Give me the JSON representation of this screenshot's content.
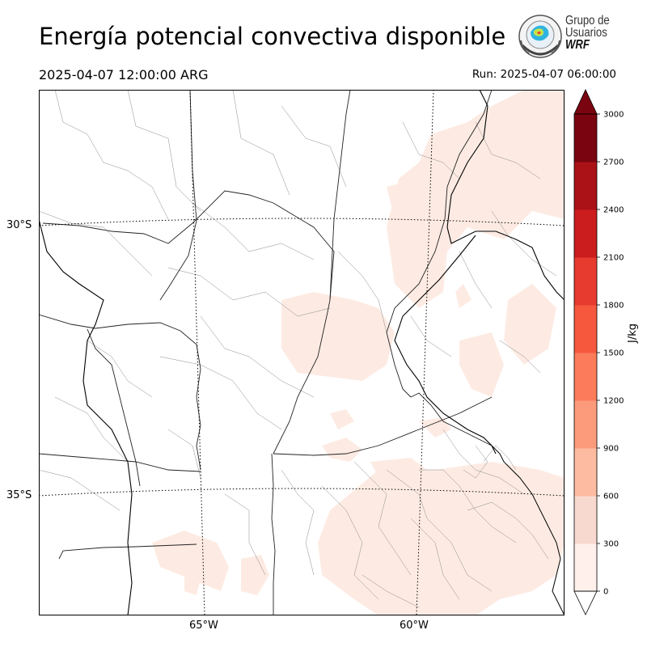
{
  "header": {
    "title": "Energía potencial convectiva disponible",
    "valid_time": "2025-04-07 12:00:00 ARG",
    "run_time": "Run: 2025-04-07 06:00:00"
  },
  "logo": {
    "line1": "Grupo de",
    "line2": "Usuarios",
    "line3": "WRF"
  },
  "map": {
    "latitude_labels": [
      "30°S",
      "35°S"
    ],
    "longitude_labels": [
      "65°W",
      "60°W"
    ],
    "shading_color": "#fdebe3"
  },
  "colorbar": {
    "unit": "J/kg",
    "ticks": [
      "0",
      "300",
      "600",
      "900",
      "1200",
      "1500",
      "1800",
      "2100",
      "2400",
      "2700",
      "3000"
    ],
    "colors": [
      "#fff0eb",
      "#f7d9cf",
      "#fdbba1",
      "#fc9b7c",
      "#fb7b5b",
      "#f6583e",
      "#e83b2f",
      "#cb1d1e",
      "#ab1218",
      "#7a0510"
    ]
  }
}
